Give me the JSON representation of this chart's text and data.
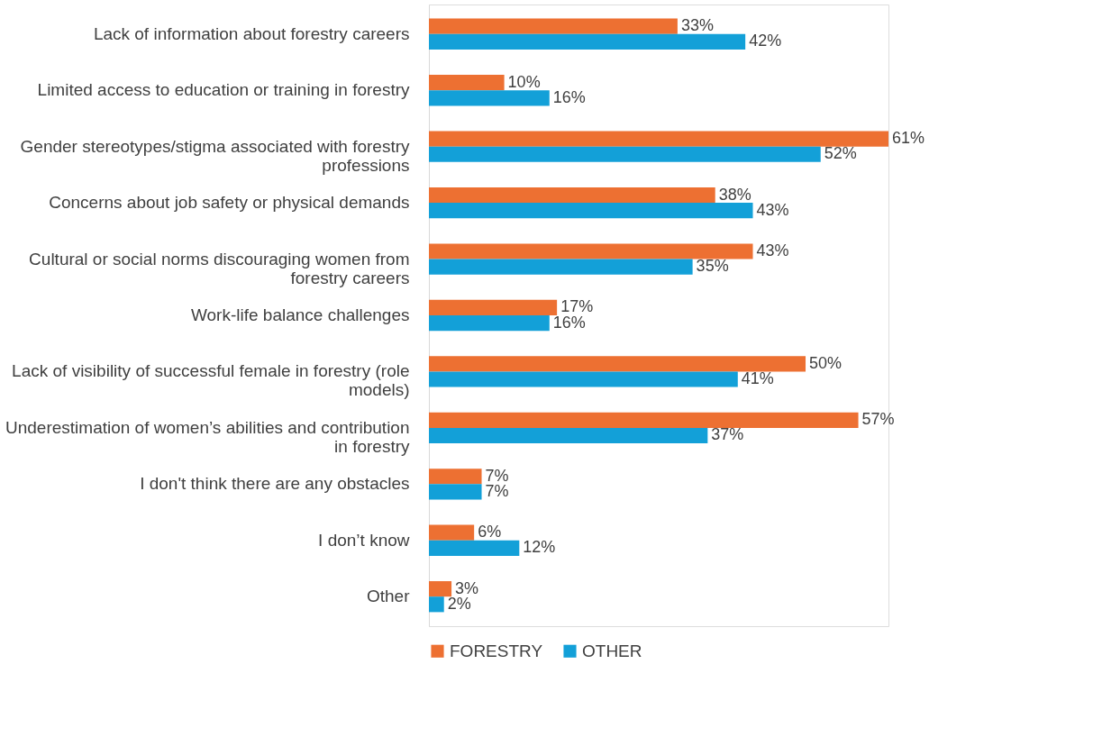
{
  "chart_data": {
    "type": "bar",
    "orientation": "horizontal",
    "legend": "bottom",
    "categories": [
      "Lack of information about forestry careers",
      "Limited access to education or training in forestry",
      "Gender stereotypes/stigma associated with forestry\nprofessions",
      "Concerns about job safety or physical demands",
      "Cultural or social norms discouraging women from\nforestry careers",
      "Work-life balance challenges",
      "Lack of visibility of successful female in forestry (role\nmodels)",
      "Underestimation of women’s abilities and contribution\nin forestry",
      "I don't think there are any obstacles",
      "I don’t know",
      "Other"
    ],
    "series": [
      {
        "name": "FORESTRY",
        "color": "#ed7032",
        "values": [
          33,
          10,
          61,
          38,
          43,
          17,
          50,
          57,
          7,
          6,
          3
        ],
        "value_labels": [
          "33%",
          "10%",
          "61%",
          "38%",
          "43%",
          "17%",
          "50%",
          "57%",
          "7%",
          "6%",
          "3%"
        ]
      },
      {
        "name": "OTHER",
        "color": "#13a0d8",
        "values": [
          42,
          16,
          52,
          43,
          35,
          16,
          41,
          37,
          7,
          12,
          2
        ],
        "value_labels": [
          "42%",
          "16%",
          "52%",
          "43%",
          "35%",
          "16%",
          "41%",
          "37%",
          "7%",
          "12%",
          "2%"
        ]
      }
    ]
  }
}
